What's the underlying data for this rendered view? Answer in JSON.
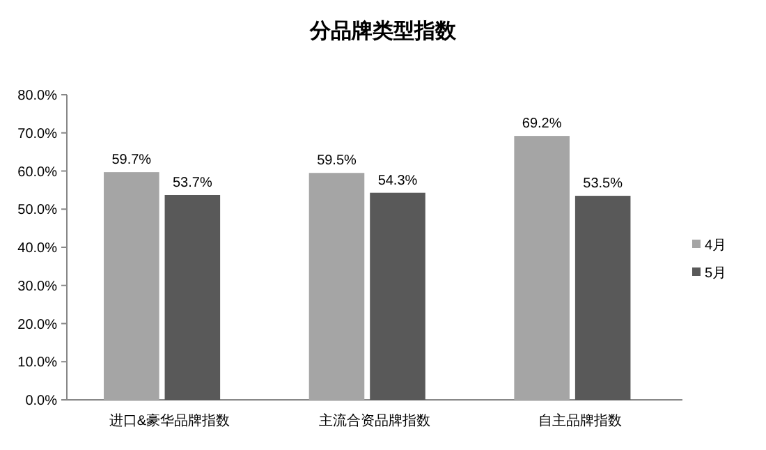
{
  "chart_data": {
    "type": "bar",
    "title": "分品牌类型指数",
    "categories": [
      "进口&豪华品牌指数",
      "主流合资品牌指数",
      "自主品牌指数"
    ],
    "series": [
      {
        "name": "4月",
        "color": "#a5a5a5",
        "values": [
          59.7,
          59.5,
          69.2
        ],
        "value_labels": [
          "59.7%",
          "59.5%",
          "69.2%"
        ]
      },
      {
        "name": "5月",
        "color": "#595959",
        "values": [
          53.7,
          54.3,
          53.5
        ],
        "value_labels": [
          "53.7%",
          "54.3%",
          "53.5%"
        ]
      }
    ],
    "ylim": [
      0,
      80
    ],
    "yticks": [
      {
        "value": 0,
        "label": "0.0%"
      },
      {
        "value": 10,
        "label": "10.0%"
      },
      {
        "value": 20,
        "label": "20.0%"
      },
      {
        "value": 30,
        "label": "30.0%"
      },
      {
        "value": 40,
        "label": "40.0%"
      },
      {
        "value": 50,
        "label": "50.0%"
      },
      {
        "value": 60,
        "label": "60.0%"
      },
      {
        "value": 70,
        "label": "70.0%"
      },
      {
        "value": 80,
        "label": "80.0%"
      }
    ],
    "grid": false,
    "legend": "right"
  }
}
